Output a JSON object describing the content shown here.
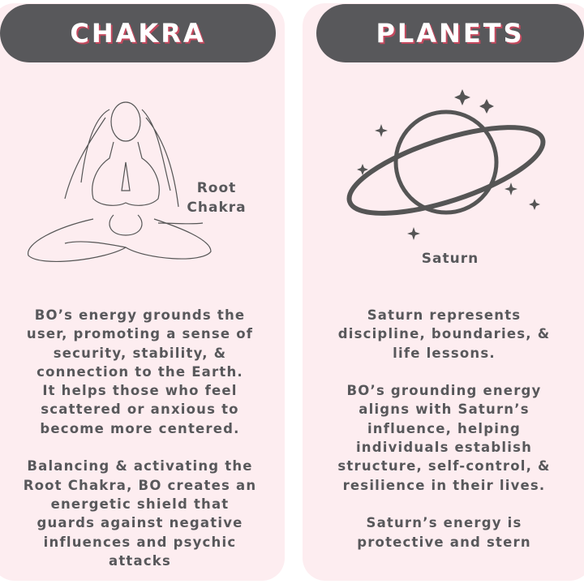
{
  "left": {
    "title": "CHAKRA",
    "caption_lines": [
      "Root",
      "Chakra"
    ],
    "lines": [
      "BO’s energy grounds the",
      "user, promoting a sense of",
      "security, stability, &",
      "connection to the Earth.",
      "It helps those who feel",
      "scattered or anxious to",
      "become more centered.",
      "",
      "Balancing & activating the",
      "Root Chakra, BO creates an",
      "energetic shield that",
      "guards against negative",
      "influences and psychic",
      "attacks"
    ]
  },
  "right": {
    "title": "PLANETS",
    "caption": "Saturn",
    "lines": [
      "Saturn represents",
      "discipline, boundaries, &",
      "life lessons.",
      "",
      "BO’s grounding energy",
      "aligns with Saturn’s",
      "influence, helping",
      "individuals establish",
      "structure, self-control, &",
      "resilience in their lives.",
      "",
      "Saturn’s energy is",
      "protective and stern"
    ]
  },
  "colors": {
    "panel": "#fdedf0",
    "header": "#58585b",
    "text": "#58585b",
    "title_shadow": "#c4495e"
  }
}
